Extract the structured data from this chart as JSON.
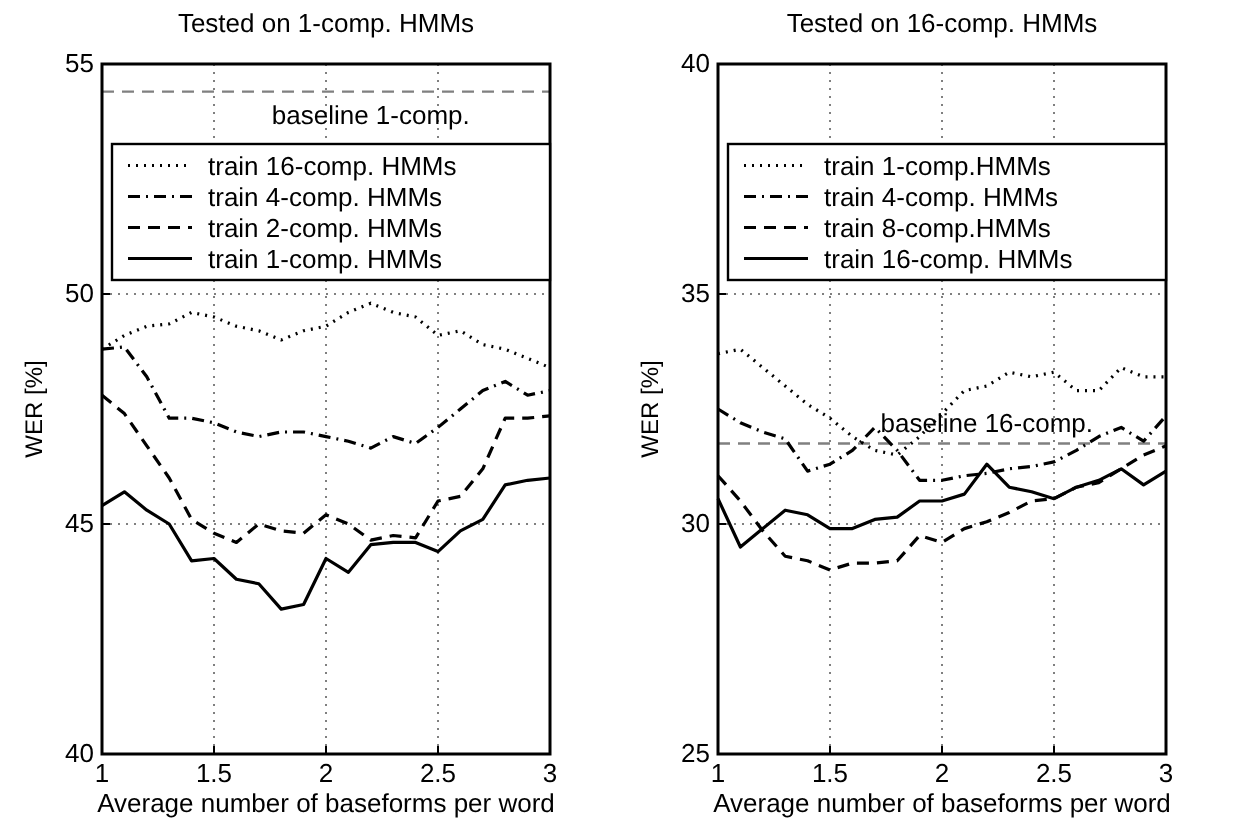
{
  "chart_data": [
    {
      "type": "line",
      "title": "Tested on 1-comp. HMMs",
      "xlabel": "Average number of baseforms per word",
      "ylabel": "WER [%]",
      "x": [
        1,
        1.1,
        1.2,
        1.3,
        1.4,
        1.5,
        1.6,
        1.7,
        1.8,
        1.9,
        2,
        2.1,
        2.2,
        2.3,
        2.4,
        2.5,
        2.6,
        2.7,
        2.8,
        2.9,
        3
      ],
      "xlim": [
        1,
        3
      ],
      "ylim": [
        40,
        55
      ],
      "xticks": [
        1,
        1.5,
        2,
        2.5,
        3
      ],
      "yticks": [
        40,
        45,
        50,
        55
      ],
      "grid": true,
      "legend": "top",
      "ref_lines": [
        {
          "axis": "y",
          "value": 54.4,
          "label": "baseline 1-comp.",
          "color": "#808080",
          "line_style": "dashed"
        }
      ],
      "series": [
        {
          "name": "train 16-comp. HMMs",
          "color": "#000000",
          "line_style": "dotted",
          "values": [
            48.8,
            49.1,
            49.3,
            49.35,
            49.6,
            49.5,
            49.3,
            49.2,
            49,
            49.2,
            49.3,
            49.6,
            49.8,
            49.6,
            49.5,
            49.1,
            49.2,
            48.9,
            48.8,
            48.6,
            48.4
          ]
        },
        {
          "name": "train 4-comp. HMMs",
          "color": "#000000",
          "line_style": "dashdot",
          "values": [
            48.8,
            48.85,
            48.2,
            47.3,
            47.3,
            47.2,
            47,
            46.9,
            47,
            47,
            46.9,
            46.8,
            46.65,
            46.9,
            46.75,
            47.1,
            47.5,
            47.9,
            48.1,
            47.8,
            47.9
          ]
        },
        {
          "name": "train 2-comp. HMMs",
          "color": "#000000",
          "line_style": "dashed",
          "values": [
            47.8,
            47.4,
            46.7,
            46,
            45.1,
            44.8,
            44.6,
            45,
            44.85,
            44.8,
            45.2,
            45,
            44.65,
            44.75,
            44.7,
            45.5,
            45.6,
            46.2,
            47.3,
            47.3,
            47.35
          ]
        },
        {
          "name": "train 1-comp. HMMs",
          "color": "#000000",
          "line_style": "solid",
          "values": [
            45.4,
            45.7,
            45.3,
            45,
            44.2,
            44.25,
            43.8,
            43.7,
            43.15,
            43.25,
            44.25,
            43.95,
            44.55,
            44.6,
            44.6,
            44.4,
            44.85,
            45.1,
            45.85,
            45.95,
            46
          ]
        }
      ]
    },
    {
      "type": "line",
      "title": "Tested on 16-comp. HMMs",
      "xlabel": "Average number of baseforms per word",
      "ylabel": "WER [%]",
      "x": [
        1,
        1.1,
        1.2,
        1.3,
        1.4,
        1.5,
        1.6,
        1.7,
        1.8,
        1.9,
        2,
        2.1,
        2.2,
        2.3,
        2.4,
        2.5,
        2.6,
        2.7,
        2.8,
        2.9,
        3
      ],
      "xlim": [
        1,
        3
      ],
      "ylim": [
        25,
        40
      ],
      "xticks": [
        1,
        1.5,
        2,
        2.5,
        3
      ],
      "yticks": [
        25,
        30,
        35,
        40
      ],
      "grid": true,
      "legend": "top",
      "ref_lines": [
        {
          "axis": "y",
          "value": 31.75,
          "label": "baseline 16-comp.",
          "color": "#808080",
          "line_style": "dashed"
        }
      ],
      "series": [
        {
          "name": "train 1-comp.HMMs",
          "color": "#000000",
          "line_style": "dotted",
          "values": [
            33.7,
            33.8,
            33.4,
            33,
            32.6,
            32.3,
            31.9,
            31.6,
            31.5,
            31.9,
            32.4,
            32.9,
            33,
            33.3,
            33.2,
            33.3,
            32.9,
            32.9,
            33.4,
            33.2,
            33.2
          ]
        },
        {
          "name": "train 4-comp. HMMs",
          "color": "#000000",
          "line_style": "dashdot",
          "values": [
            32.5,
            32.2,
            32,
            31.85,
            31.15,
            31.3,
            31.6,
            32.1,
            31.6,
            30.95,
            30.95,
            31.05,
            31.1,
            31.2,
            31.25,
            31.35,
            31.6,
            31.9,
            32.1,
            31.8,
            32.35
          ]
        },
        {
          "name": "train 8-comp.HMMs",
          "color": "#000000",
          "line_style": "dashed",
          "values": [
            31.05,
            30.5,
            29.85,
            29.3,
            29.2,
            29,
            29.15,
            29.15,
            29.2,
            29.75,
            29.6,
            29.9,
            30.05,
            30.25,
            30.5,
            30.55,
            30.8,
            30.9,
            31.2,
            31.5,
            31.7
          ]
        },
        {
          "name": "train 16-comp. HMMs",
          "color": "#000000",
          "line_style": "solid",
          "values": [
            30.55,
            29.5,
            29.9,
            30.3,
            30.2,
            29.9,
            29.9,
            30.1,
            30.15,
            30.5,
            30.5,
            30.65,
            31.3,
            30.8,
            30.7,
            30.55,
            30.8,
            30.95,
            31.2,
            30.85,
            31.15
          ]
        }
      ]
    }
  ]
}
